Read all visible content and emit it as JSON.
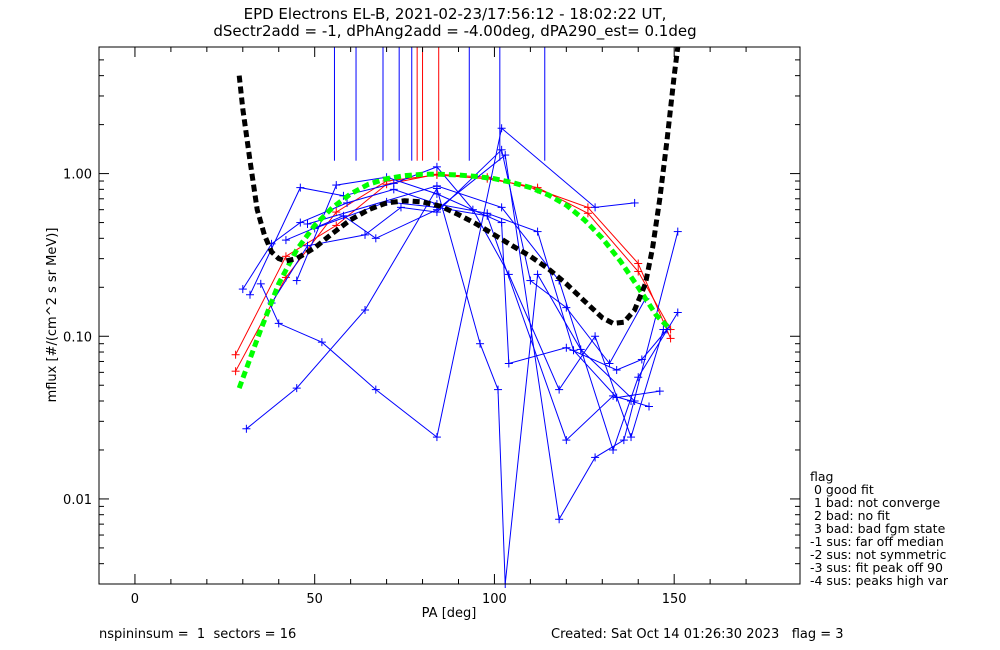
{
  "title": {
    "line1": "EPD Electrons EL-B, 2021-02-23/17:56:12 - 18:02:22 UT,",
    "line2": "dSectr2add = -1, dPhAng2add = -4.00deg, dPA290_est=   0.1deg"
  },
  "chart_data": {
    "type": "line",
    "xlabel": "PA [deg]",
    "ylabel": "mflux [#/(cm^2 s sr MeV)]",
    "xlim": [
      -10,
      185
    ],
    "ylim": [
      0.003,
      6.0
    ],
    "yscale": "log",
    "xticks": [
      0,
      50,
      100,
      150
    ],
    "xtick_labels": [
      "0",
      "50",
      "100",
      "150"
    ],
    "yticks": [
      0.01,
      0.1,
      1.0
    ],
    "ytick_labels": [
      "0.01",
      "0.10",
      "1.00"
    ],
    "colors": {
      "red": "#ff0000",
      "blue": "#0000ff",
      "green": "#00ff00",
      "black": "#000000"
    },
    "vertical_marks": [
      {
        "x": 55.5,
        "color": "blue"
      },
      {
        "x": 61.5,
        "color": "blue"
      },
      {
        "x": 69.0,
        "color": "blue"
      },
      {
        "x": 73.5,
        "color": "blue"
      },
      {
        "x": 77.0,
        "color": "blue"
      },
      {
        "x": 78.5,
        "color": "red"
      },
      {
        "x": 80.0,
        "color": "red"
      },
      {
        "x": 84.5,
        "color": "red"
      },
      {
        "x": 93.0,
        "color": "blue"
      },
      {
        "x": 101.5,
        "color": "blue"
      },
      {
        "x": 114.0,
        "color": "blue"
      }
    ],
    "vertical_marks_ybottom": 1.2,
    "series": [
      {
        "color": "red",
        "style": "solid-plus",
        "points": [
          [
            28,
            0.077
          ],
          [
            42,
            0.31
          ],
          [
            56,
            0.48
          ],
          [
            70,
            0.86
          ],
          [
            84,
            0.99
          ],
          [
            98,
            0.95
          ],
          [
            112,
            0.8
          ],
          [
            126,
            0.62
          ],
          [
            140,
            0.28
          ],
          [
            149,
            0.097
          ]
        ]
      },
      {
        "color": "red",
        "style": "solid-plus",
        "points": [
          [
            28,
            0.061
          ],
          [
            42,
            0.23
          ],
          [
            56,
            0.58
          ],
          [
            70,
            0.9
          ],
          [
            84,
            0.98
          ],
          [
            98,
            0.93
          ],
          [
            112,
            0.82
          ],
          [
            126,
            0.57
          ],
          [
            140,
            0.25
          ],
          [
            149,
            0.11
          ]
        ]
      },
      {
        "color": "blue",
        "style": "solid-plus",
        "points": [
          [
            30,
            0.195
          ],
          [
            38,
            0.37
          ],
          [
            46,
            0.5
          ],
          [
            59,
            0.66
          ],
          [
            72,
            0.8
          ],
          [
            84,
            0.65
          ],
          [
            98,
            0.57
          ],
          [
            112,
            0.44
          ],
          [
            122,
            0.082
          ],
          [
            134,
            0.042
          ],
          [
            146,
            0.046
          ]
        ]
      },
      {
        "color": "blue",
        "style": "solid-plus",
        "points": [
          [
            32,
            0.18
          ],
          [
            46,
            0.82
          ],
          [
            58,
            0.73
          ],
          [
            72,
            0.87
          ],
          [
            84,
            1.1
          ],
          [
            94,
            0.6
          ],
          [
            104,
            0.24
          ],
          [
            118,
            0.047
          ],
          [
            128,
            0.1
          ],
          [
            138,
            0.024
          ],
          [
            147,
            0.11
          ]
        ]
      },
      {
        "color": "blue",
        "style": "solid-plus",
        "points": [
          [
            31,
            0.027
          ],
          [
            45,
            0.048
          ],
          [
            64,
            0.145
          ],
          [
            84,
            0.81
          ],
          [
            96,
            0.09
          ],
          [
            101,
            0.047
          ],
          [
            103,
            0.003
          ],
          [
            112,
            0.24
          ],
          [
            124,
            0.083
          ],
          [
            139,
            0.04
          ]
        ]
      },
      {
        "color": "blue",
        "style": "solid-plus",
        "points": [
          [
            35,
            0.21
          ],
          [
            40,
            0.12
          ],
          [
            52,
            0.092
          ],
          [
            67,
            0.047
          ],
          [
            84,
            0.024
          ],
          [
            102,
            1.9
          ],
          [
            128,
            0.62
          ],
          [
            139,
            0.66
          ]
        ]
      },
      {
        "color": "blue",
        "style": "solid-plus",
        "points": [
          [
            38,
            0.16
          ],
          [
            48,
            0.36
          ],
          [
            64,
            0.42
          ],
          [
            74,
            0.62
          ],
          [
            84,
            0.58
          ],
          [
            102,
            1.4
          ],
          [
            110,
            0.22
          ],
          [
            120,
            0.15
          ],
          [
            132,
            0.068
          ],
          [
            142,
            0.17
          ]
        ]
      },
      {
        "color": "blue",
        "style": "solid-plus",
        "points": [
          [
            42,
            0.39
          ],
          [
            58,
            0.55
          ],
          [
            67,
            0.4
          ],
          [
            84,
            0.6
          ],
          [
            103,
            1.3
          ],
          [
            118,
            0.0075
          ],
          [
            128,
            0.018
          ],
          [
            136,
            0.023
          ],
          [
            151,
            0.44
          ]
        ]
      },
      {
        "color": "blue",
        "style": "solid-plus",
        "points": [
          [
            45,
            0.22
          ],
          [
            56,
            0.85
          ],
          [
            70,
            0.95
          ],
          [
            84,
            0.75
          ],
          [
            102,
            0.5
          ],
          [
            104,
            0.068
          ],
          [
            120,
            0.085
          ],
          [
            134,
            0.062
          ],
          [
            141,
            0.072
          ],
          [
            148,
            0.11
          ]
        ]
      },
      {
        "color": "blue",
        "style": "solid-plus",
        "points": [
          [
            50,
            0.46
          ],
          [
            70,
            0.67
          ],
          [
            84,
            0.62
          ],
          [
            98,
            0.55
          ],
          [
            120,
            0.023
          ],
          [
            133,
            0.043
          ],
          [
            138,
            0.04
          ],
          [
            143,
            0.037
          ]
        ]
      },
      {
        "color": "blue",
        "style": "solid-plus",
        "points": [
          [
            48,
            0.49
          ],
          [
            84,
            0.84
          ],
          [
            102,
            0.62
          ],
          [
            118,
            0.22
          ],
          [
            133,
            0.02
          ],
          [
            140,
            0.056
          ],
          [
            151,
            0.14
          ]
        ]
      },
      {
        "color": "green",
        "style": "dashed",
        "points": [
          [
            29,
            0.048
          ],
          [
            35,
            0.11
          ],
          [
            40,
            0.21
          ],
          [
            45,
            0.34
          ],
          [
            50,
            0.48
          ],
          [
            55,
            0.62
          ],
          [
            60,
            0.75
          ],
          [
            65,
            0.86
          ],
          [
            70,
            0.93
          ],
          [
            75,
            0.97
          ],
          [
            80,
            0.99
          ],
          [
            85,
            0.99
          ],
          [
            90,
            0.98
          ],
          [
            95,
            0.96
          ],
          [
            100,
            0.93
          ],
          [
            105,
            0.88
          ],
          [
            110,
            0.82
          ],
          [
            115,
            0.74
          ],
          [
            120,
            0.64
          ],
          [
            125,
            0.52
          ],
          [
            130,
            0.4
          ],
          [
            135,
            0.29
          ],
          [
            140,
            0.2
          ],
          [
            145,
            0.135
          ],
          [
            149,
            0.11
          ]
        ]
      },
      {
        "color": "black",
        "style": "dashed",
        "points": [
          [
            29,
            4.0
          ],
          [
            30,
            2.5
          ],
          [
            32,
            1.2
          ],
          [
            34,
            0.6
          ],
          [
            36,
            0.42
          ],
          [
            38,
            0.33
          ],
          [
            40,
            0.3
          ],
          [
            42,
            0.29
          ],
          [
            45,
            0.3
          ],
          [
            50,
            0.35
          ],
          [
            55,
            0.43
          ],
          [
            60,
            0.52
          ],
          [
            65,
            0.6
          ],
          [
            70,
            0.66
          ],
          [
            75,
            0.68
          ],
          [
            80,
            0.67
          ],
          [
            85,
            0.63
          ],
          [
            90,
            0.56
          ],
          [
            95,
            0.49
          ],
          [
            100,
            0.42
          ],
          [
            105,
            0.36
          ],
          [
            110,
            0.31
          ],
          [
            115,
            0.26
          ],
          [
            120,
            0.21
          ],
          [
            125,
            0.165
          ],
          [
            130,
            0.13
          ],
          [
            133,
            0.12
          ],
          [
            136,
            0.122
          ],
          [
            139,
            0.145
          ],
          [
            142,
            0.21
          ],
          [
            144,
            0.35
          ],
          [
            146,
            0.7
          ],
          [
            148,
            1.6
          ],
          [
            150,
            4.0
          ],
          [
            151,
            6.0
          ]
        ]
      }
    ]
  },
  "flag_legend": [
    "flag",
    " 0 good fit",
    " 1 bad: not converge",
    " 2 bad: no fit",
    " 3 bad: bad fgm state",
    "-1 sus: far off median",
    "-2 sus: not symmetric",
    "-3 sus: fit peak off 90",
    "-4 sus: peaks high var"
  ],
  "footer": {
    "left": "nspininsum =  1  sectors = 16",
    "right": "Created: Sat Oct 14 01:26:30 2023   flag = 3"
  }
}
